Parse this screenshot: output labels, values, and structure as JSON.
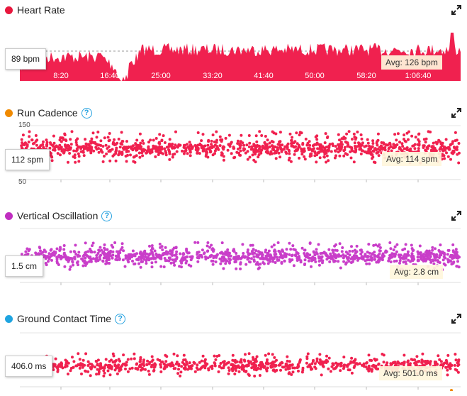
{
  "x_ticks": [
    "8:20",
    "16:40",
    "25:00",
    "33:20",
    "41:40",
    "50:00",
    "58:20",
    "1:06:40"
  ],
  "panels": {
    "hr": {
      "title": "Heart Rate",
      "current": "89 bpm",
      "avg": "Avg: 126 bpm",
      "color": "#f0214f",
      "dot_color": "#e8173d"
    },
    "cad": {
      "title": "Run Cadence",
      "current": "112 spm",
      "avg": "Avg: 114 spm",
      "color": "#f0214f",
      "dot_color": "#f08a00",
      "ymax_label": "150",
      "ymin_label": "50",
      "help": "?"
    },
    "vo": {
      "title": "Vertical Oscillation",
      "current": "1.5 cm",
      "avg": "Avg: 2.8 cm",
      "color": "#c93ec9",
      "dot_color": "#c02ec0",
      "help": "?"
    },
    "gct": {
      "title": "Ground Contact Time",
      "current": "406.0 ms",
      "avg": "Avg: 501.0 ms",
      "color": "#f0214f",
      "dot_color": "#1fa4e0",
      "help": "?"
    }
  },
  "chart_data": [
    {
      "type": "area",
      "title": "Heart Rate",
      "x": [
        "8:20",
        "16:40",
        "25:00",
        "33:20",
        "41:40",
        "50:00",
        "58:20",
        "1:06:40"
      ],
      "series": [
        {
          "name": "Heart Rate",
          "unit": "bpm",
          "average": 126,
          "current": 89
        }
      ]
    },
    {
      "type": "scatter",
      "title": "Run Cadence",
      "ylim": [
        50,
        150
      ],
      "x": [
        "8:20",
        "16:40",
        "25:00",
        "33:20",
        "41:40",
        "50:00",
        "58:20",
        "1:06:40"
      ],
      "series": [
        {
          "name": "Run Cadence",
          "unit": "spm",
          "average": 114,
          "current": 112
        }
      ]
    },
    {
      "type": "scatter",
      "title": "Vertical Oscillation",
      "x": [
        "8:20",
        "16:40",
        "25:00",
        "33:20",
        "41:40",
        "50:00",
        "58:20",
        "1:06:40"
      ],
      "series": [
        {
          "name": "Vertical Oscillation",
          "unit": "cm",
          "average": 2.8,
          "current": 1.5
        }
      ]
    },
    {
      "type": "scatter",
      "title": "Ground Contact Time",
      "x": [
        "8:20",
        "16:40",
        "25:00",
        "33:20",
        "41:40",
        "50:00",
        "58:20",
        "1:06:40"
      ],
      "series": [
        {
          "name": "Ground Contact Time",
          "unit": "ms",
          "average": 501.0,
          "current": 406.0
        }
      ]
    }
  ]
}
